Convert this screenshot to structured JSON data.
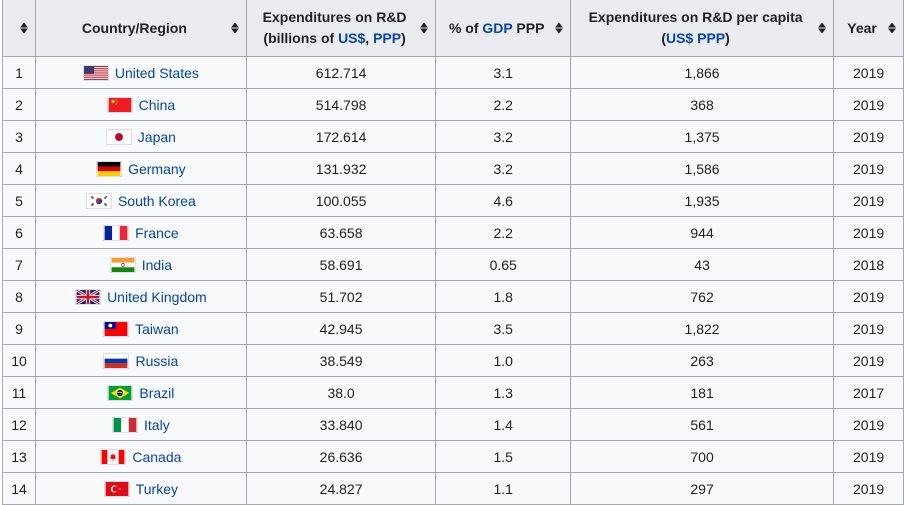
{
  "table": {
    "headers": {
      "rank": "",
      "country": "Country/Region",
      "expenditure_line1": "Expenditures on R&D",
      "expenditure_line2_prefix": "(billions of ",
      "expenditure_link_usd": "US$",
      "expenditure_sep": ", ",
      "expenditure_link_ppp": "PPP",
      "expenditure_suffix": ")",
      "gdp_prefix": "% of ",
      "gdp_link": "GDP",
      "gdp_suffix": " PPP",
      "percapita_line1": "Expenditures on R&D per capita",
      "percapita_open": "(",
      "percapita_link": "US$ PPP",
      "percapita_close": ")",
      "year": "Year"
    },
    "sort_icon": "sort-up-down-icon",
    "link_color": "#0645ad",
    "header_bg": "#eaecf0",
    "cell_bg": "#f8f9fa",
    "border_color": "#a2a9b1",
    "rows": [
      {
        "rank": "1",
        "country": "United States",
        "flag": "flag-usa-icon",
        "expenditure": "612.714",
        "gdp_pct": "3.1",
        "per_capita": "1,866",
        "year": "2019"
      },
      {
        "rank": "2",
        "country": "China",
        "flag": "flag-china-icon",
        "expenditure": "514.798",
        "gdp_pct": "2.2",
        "per_capita": "368",
        "year": "2019"
      },
      {
        "rank": "3",
        "country": "Japan",
        "flag": "flag-japan-icon",
        "expenditure": "172.614",
        "gdp_pct": "3.2",
        "per_capita": "1,375",
        "year": "2019"
      },
      {
        "rank": "4",
        "country": "Germany",
        "flag": "flag-germany-icon",
        "expenditure": "131.932",
        "gdp_pct": "3.2",
        "per_capita": "1,586",
        "year": "2019"
      },
      {
        "rank": "5",
        "country": "South Korea",
        "flag": "flag-south-korea-icon",
        "expenditure": "100.055",
        "gdp_pct": "4.6",
        "per_capita": "1,935",
        "year": "2019"
      },
      {
        "rank": "6",
        "country": "France",
        "flag": "flag-france-icon",
        "expenditure": "63.658",
        "gdp_pct": "2.2",
        "per_capita": "944",
        "year": "2019"
      },
      {
        "rank": "7",
        "country": "India",
        "flag": "flag-india-icon",
        "expenditure": "58.691",
        "gdp_pct": "0.65",
        "per_capita": "43",
        "year": "2018"
      },
      {
        "rank": "8",
        "country": "United Kingdom",
        "flag": "flag-uk-icon",
        "expenditure": "51.702",
        "gdp_pct": "1.8",
        "per_capita": "762",
        "year": "2019"
      },
      {
        "rank": "9",
        "country": "Taiwan",
        "flag": "flag-taiwan-icon",
        "expenditure": "42.945",
        "gdp_pct": "3.5",
        "per_capita": "1,822",
        "year": "2019"
      },
      {
        "rank": "10",
        "country": "Russia",
        "flag": "flag-russia-icon",
        "expenditure": "38.549",
        "gdp_pct": "1.0",
        "per_capita": "263",
        "year": "2019"
      },
      {
        "rank": "11",
        "country": "Brazil",
        "flag": "flag-brazil-icon",
        "expenditure": "38.0",
        "gdp_pct": "1.3",
        "per_capita": "181",
        "year": "2017"
      },
      {
        "rank": "12",
        "country": "Italy",
        "flag": "flag-italy-icon",
        "expenditure": "33.840",
        "gdp_pct": "1.4",
        "per_capita": "561",
        "year": "2019"
      },
      {
        "rank": "13",
        "country": "Canada",
        "flag": "flag-canada-icon",
        "expenditure": "26.636",
        "gdp_pct": "1.5",
        "per_capita": "700",
        "year": "2019"
      },
      {
        "rank": "14",
        "country": "Turkey",
        "flag": "flag-turkey-icon",
        "expenditure": "24.827",
        "gdp_pct": "1.1",
        "per_capita": "297",
        "year": "2019"
      }
    ]
  }
}
